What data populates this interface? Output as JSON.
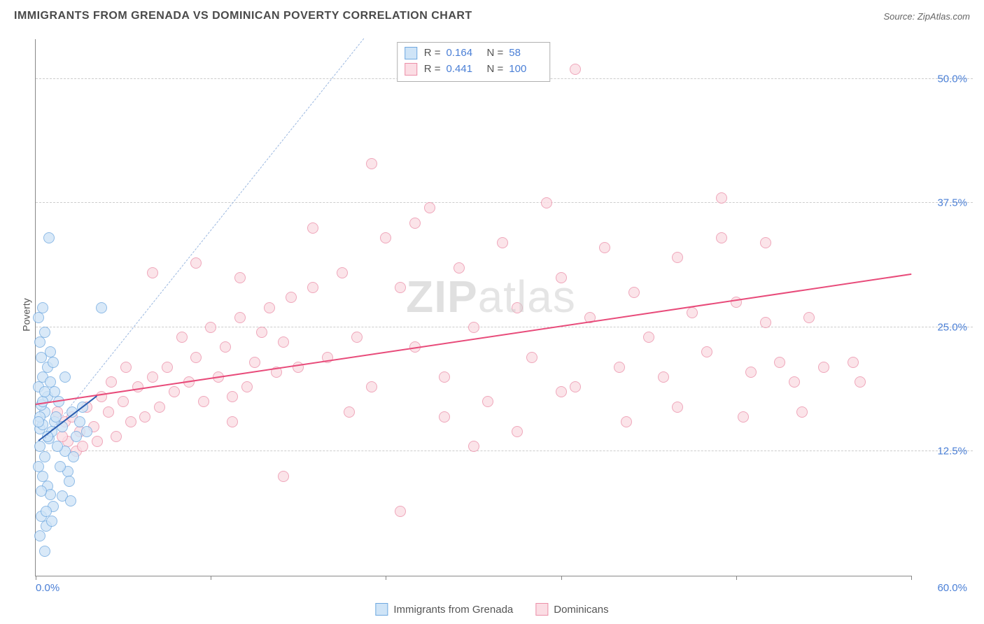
{
  "title": "IMMIGRANTS FROM GRENADA VS DOMINICAN POVERTY CORRELATION CHART",
  "source_label": "Source: ZipAtlas.com",
  "ylabel": "Poverty",
  "watermark": "ZIPatlas",
  "chart": {
    "type": "scatter",
    "xlim": [
      0,
      60
    ],
    "ylim": [
      0,
      54
    ],
    "y_gridlines": [
      12.5,
      25.0,
      37.5,
      50.0
    ],
    "y_tick_labels": [
      "12.5%",
      "25.0%",
      "37.5%",
      "50.0%"
    ],
    "x_ticks": [
      0,
      12,
      24,
      36,
      48,
      60
    ],
    "x_min_label": "0.0%",
    "x_max_label": "60.0%",
    "grid_color": "#cccccc",
    "axis_color": "#888888",
    "background_color": "#ffffff",
    "tick_label_color": "#4a7fd6",
    "point_radius": 8,
    "series": [
      {
        "name": "Immigrants from Grenada",
        "fill": "#cfe4f7",
        "stroke": "#6fa8e0",
        "r_value": "0.164",
        "n_value": "58",
        "trend": {
          "x1": 0.2,
          "y1": 13.5,
          "x2": 4.2,
          "y2": 18.0,
          "color": "#2a5db0",
          "width": 2,
          "dash": false
        },
        "ref_dash": {
          "x1": 0.5,
          "y1": 13.5,
          "x2": 22.5,
          "y2": 54,
          "color": "#9bb8e0",
          "width": 1.2,
          "dash": true
        },
        "points": [
          [
            0.3,
            14.8
          ],
          [
            0.5,
            15.2
          ],
          [
            0.6,
            16.5
          ],
          [
            0.4,
            17.2
          ],
          [
            0.8,
            18.0
          ],
          [
            0.3,
            13.0
          ],
          [
            0.6,
            12.0
          ],
          [
            0.9,
            13.8
          ],
          [
            1.1,
            14.5
          ],
          [
            1.3,
            15.5
          ],
          [
            0.2,
            11.0
          ],
          [
            0.5,
            10.0
          ],
          [
            0.8,
            9.0
          ],
          [
            1.0,
            8.2
          ],
          [
            1.2,
            7.0
          ],
          [
            0.4,
            6.0
          ],
          [
            0.7,
            5.0
          ],
          [
            0.3,
            4.0
          ],
          [
            0.6,
            2.5
          ],
          [
            0.2,
            19.0
          ],
          [
            0.5,
            20.0
          ],
          [
            0.8,
            21.0
          ],
          [
            0.4,
            22.0
          ],
          [
            1.0,
            22.5
          ],
          [
            0.3,
            23.5
          ],
          [
            0.6,
            24.5
          ],
          [
            0.2,
            26.0
          ],
          [
            0.5,
            27.0
          ],
          [
            1.4,
            16.0
          ],
          [
            1.6,
            17.5
          ],
          [
            1.8,
            15.0
          ],
          [
            2.0,
            12.5
          ],
          [
            2.2,
            10.5
          ],
          [
            1.5,
            13.0
          ],
          [
            1.7,
            11.0
          ],
          [
            1.0,
            19.5
          ],
          [
            1.3,
            18.5
          ],
          [
            2.5,
            16.5
          ],
          [
            2.3,
            9.5
          ],
          [
            2.8,
            14.0
          ],
          [
            3.0,
            15.5
          ],
          [
            3.2,
            17.0
          ],
          [
            3.5,
            14.5
          ],
          [
            2.6,
            12.0
          ],
          [
            2.0,
            20.0
          ],
          [
            1.2,
            21.5
          ],
          [
            0.9,
            34.0
          ],
          [
            4.5,
            27.0
          ],
          [
            1.8,
            8.0
          ],
          [
            2.4,
            7.5
          ],
          [
            0.4,
            8.5
          ],
          [
            0.7,
            6.5
          ],
          [
            1.1,
            5.5
          ],
          [
            0.3,
            16.0
          ],
          [
            0.5,
            17.5
          ],
          [
            0.8,
            14.0
          ],
          [
            0.2,
            15.5
          ],
          [
            0.6,
            18.5
          ]
        ]
      },
      {
        "name": "Dominicans",
        "fill": "#fbdde4",
        "stroke": "#eb8fa8",
        "r_value": "0.441",
        "n_value": "100",
        "trend": {
          "x1": 0,
          "y1": 17.2,
          "x2": 60,
          "y2": 30.3,
          "color": "#e84b7a",
          "width": 2.5,
          "dash": false
        },
        "points": [
          [
            2.0,
            15.5
          ],
          [
            2.5,
            16.0
          ],
          [
            3.0,
            14.5
          ],
          [
            3.5,
            17.0
          ],
          [
            4.0,
            15.0
          ],
          [
            4.5,
            18.0
          ],
          [
            5.0,
            16.5
          ],
          [
            5.5,
            14.0
          ],
          [
            6.0,
            17.5
          ],
          [
            6.5,
            15.5
          ],
          [
            7.0,
            19.0
          ],
          [
            7.5,
            16.0
          ],
          [
            8.0,
            20.0
          ],
          [
            8.5,
            17.0
          ],
          [
            9.0,
            21.0
          ],
          [
            9.5,
            18.5
          ],
          [
            10.0,
            24.0
          ],
          [
            10.5,
            19.5
          ],
          [
            11.0,
            22.0
          ],
          [
            11.5,
            17.5
          ],
          [
            12.0,
            25.0
          ],
          [
            12.5,
            20.0
          ],
          [
            13.0,
            23.0
          ],
          [
            13.5,
            18.0
          ],
          [
            14.0,
            26.0
          ],
          [
            14.5,
            19.0
          ],
          [
            15.0,
            21.5
          ],
          [
            15.5,
            24.5
          ],
          [
            16.0,
            27.0
          ],
          [
            16.5,
            20.5
          ],
          [
            17.0,
            23.5
          ],
          [
            17.5,
            28.0
          ],
          [
            18.0,
            21.0
          ],
          [
            19.0,
            29.0
          ],
          [
            20.0,
            22.0
          ],
          [
            21.0,
            30.5
          ],
          [
            22.0,
            24.0
          ],
          [
            23.0,
            19.0
          ],
          [
            24.0,
            34.0
          ],
          [
            25.0,
            29.0
          ],
          [
            26.0,
            23.0
          ],
          [
            27.0,
            37.0
          ],
          [
            28.0,
            20.0
          ],
          [
            29.0,
            31.0
          ],
          [
            30.0,
            25.0
          ],
          [
            31.0,
            17.5
          ],
          [
            32.0,
            33.5
          ],
          [
            33.0,
            27.0
          ],
          [
            34.0,
            22.0
          ],
          [
            35.0,
            37.5
          ],
          [
            36.0,
            30.0
          ],
          [
            37.0,
            19.0
          ],
          [
            38.0,
            26.0
          ],
          [
            39.0,
            33.0
          ],
          [
            40.0,
            21.0
          ],
          [
            41.0,
            28.5
          ],
          [
            42.0,
            24.0
          ],
          [
            43.0,
            20.0
          ],
          [
            44.0,
            32.0
          ],
          [
            45.0,
            26.5
          ],
          [
            46.0,
            22.5
          ],
          [
            47.0,
            34.0
          ],
          [
            48.0,
            27.5
          ],
          [
            49.0,
            20.5
          ],
          [
            50.0,
            25.5
          ],
          [
            51.0,
            21.5
          ],
          [
            52.0,
            19.5
          ],
          [
            53.0,
            26.0
          ],
          [
            54.0,
            21.0
          ],
          [
            56.0,
            21.5
          ],
          [
            8.0,
            30.5
          ],
          [
            23.0,
            41.5
          ],
          [
            26.0,
            35.5
          ],
          [
            19.0,
            35.0
          ],
          [
            14.0,
            30.0
          ],
          [
            11.0,
            31.5
          ],
          [
            37.0,
            51.0
          ],
          [
            47.0,
            38.0
          ],
          [
            50.0,
            33.5
          ],
          [
            25.0,
            6.5
          ],
          [
            17.0,
            10.0
          ],
          [
            30.0,
            13.0
          ],
          [
            33.0,
            14.5
          ],
          [
            28.0,
            16.0
          ],
          [
            36.0,
            18.5
          ],
          [
            44.0,
            17.0
          ],
          [
            40.5,
            15.5
          ],
          [
            48.5,
            16.0
          ],
          [
            2.2,
            13.5
          ],
          [
            2.8,
            12.5
          ],
          [
            3.2,
            13.0
          ],
          [
            1.8,
            14.0
          ],
          [
            4.2,
            13.5
          ],
          [
            1.5,
            16.5
          ],
          [
            5.2,
            19.5
          ],
          [
            6.2,
            21.0
          ],
          [
            52.5,
            16.5
          ],
          [
            56.5,
            19.5
          ],
          [
            13.5,
            15.5
          ],
          [
            21.5,
            16.5
          ]
        ]
      }
    ]
  },
  "legend": {
    "r_label": "R =",
    "n_label": "N ="
  }
}
